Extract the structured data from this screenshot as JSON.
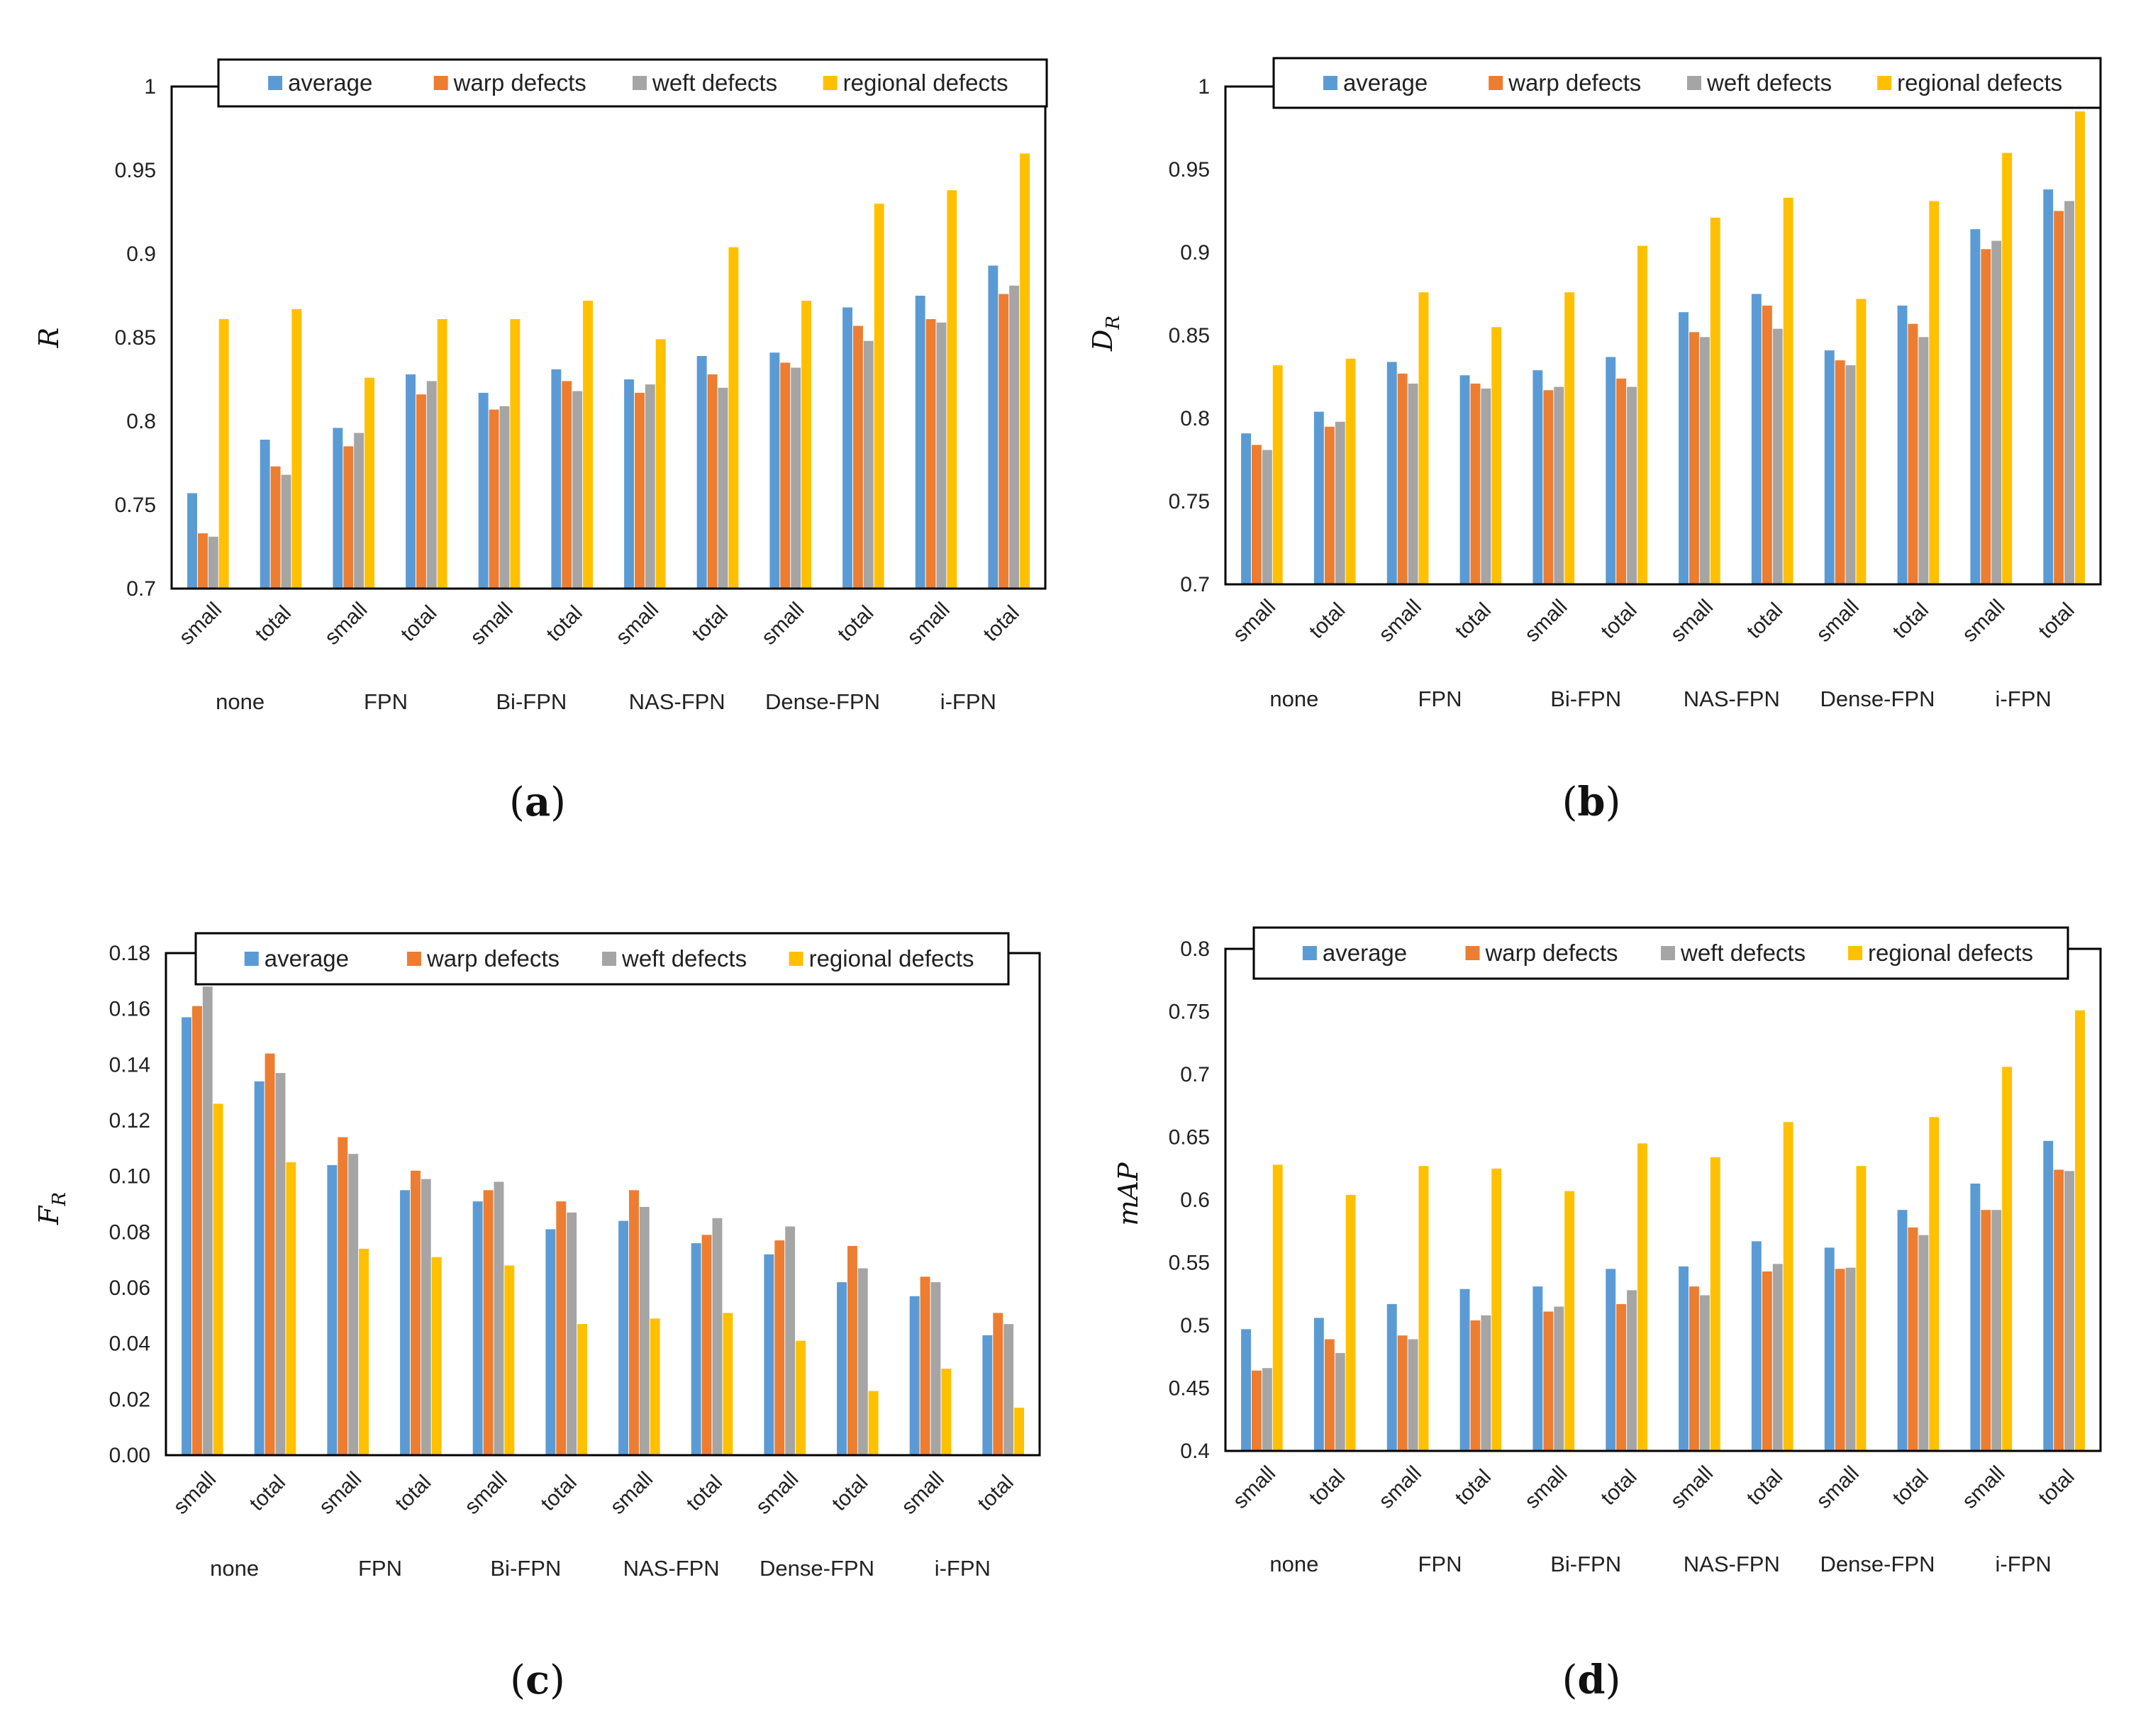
{
  "colors": {
    "average": "#5b9bd5",
    "warp defects": "#ed7d31",
    "weft defects": "#a5a5a5",
    "regional defects": "#ffc000"
  },
  "chart_data": [
    {
      "type": "bar",
      "panel": "a",
      "ylabel": "R",
      "ylim": [
        0.7,
        1
      ],
      "yticks": [
        "0.7",
        "0.75",
        "0.8",
        "0.85",
        "0.9",
        "0.95",
        "1"
      ],
      "categories": [
        "small",
        "total",
        "small",
        "total",
        "small",
        "total",
        "small",
        "total",
        "small",
        "total",
        "small",
        "total"
      ],
      "groups": [
        "none",
        "FPN",
        "Bi-FPN",
        "NAS-FPN",
        "Dense-FPN",
        "i-FPN"
      ],
      "series": [
        {
          "name": "average",
          "values": [
            0.757,
            0.789,
            0.796,
            0.828,
            0.817,
            0.831,
            0.825,
            0.839,
            0.841,
            0.868,
            0.875,
            0.893
          ]
        },
        {
          "name": "warp defects",
          "values": [
            0.733,
            0.773,
            0.785,
            0.816,
            0.807,
            0.824,
            0.817,
            0.828,
            0.835,
            0.857,
            0.861,
            0.876
          ]
        },
        {
          "name": "weft defects",
          "values": [
            0.731,
            0.768,
            0.793,
            0.824,
            0.809,
            0.818,
            0.822,
            0.82,
            0.832,
            0.848,
            0.859,
            0.881
          ]
        },
        {
          "name": "regional defects",
          "values": [
            0.861,
            0.867,
            0.826,
            0.861,
            0.861,
            0.872,
            0.849,
            0.904,
            0.872,
            0.93,
            0.938,
            0.96
          ]
        }
      ]
    },
    {
      "type": "bar",
      "panel": "b",
      "ylabel": "D_R",
      "ylim": [
        0.7,
        1
      ],
      "yticks": [
        "0.7",
        "0.75",
        "0.8",
        "0.85",
        "0.9",
        "0.95",
        "1"
      ],
      "categories": [
        "small",
        "total",
        "small",
        "total",
        "small",
        "total",
        "small",
        "total",
        "small",
        "total",
        "small",
        "total"
      ],
      "groups": [
        "none",
        "FPN",
        "Bi-FPN",
        "NAS-FPN",
        "Dense-FPN",
        "i-FPN"
      ],
      "series": [
        {
          "name": "average",
          "values": [
            0.791,
            0.804,
            0.834,
            0.826,
            0.829,
            0.837,
            0.864,
            0.875,
            0.841,
            0.868,
            0.914,
            0.938
          ]
        },
        {
          "name": "warp defects",
          "values": [
            0.784,
            0.795,
            0.827,
            0.821,
            0.817,
            0.824,
            0.852,
            0.868,
            0.835,
            0.857,
            0.902,
            0.925
          ]
        },
        {
          "name": "weft defects",
          "values": [
            0.781,
            0.798,
            0.821,
            0.818,
            0.819,
            0.819,
            0.849,
            0.854,
            0.832,
            0.849,
            0.907,
            0.931
          ]
        },
        {
          "name": "regional defects",
          "values": [
            0.832,
            0.836,
            0.876,
            0.855,
            0.876,
            0.904,
            0.921,
            0.933,
            0.872,
            0.931,
            0.96,
            0.985
          ]
        }
      ]
    },
    {
      "type": "bar",
      "panel": "c",
      "ylabel": "F_R",
      "ylim": [
        0,
        0.18
      ],
      "yticks": [
        "0.00",
        "0.02",
        "0.04",
        "0.06",
        "0.08",
        "0.10",
        "0.12",
        "0.14",
        "0.16",
        "0.18"
      ],
      "categories": [
        "small",
        "total",
        "small",
        "total",
        "small",
        "total",
        "small",
        "total",
        "small",
        "total",
        "small",
        "total"
      ],
      "groups": [
        "none",
        "FPN",
        "Bi-FPN",
        "NAS-FPN",
        "Dense-FPN",
        "i-FPN"
      ],
      "series": [
        {
          "name": "average",
          "values": [
            0.157,
            0.134,
            0.104,
            0.095,
            0.091,
            0.081,
            0.084,
            0.076,
            0.072,
            0.062,
            0.057,
            0.043
          ]
        },
        {
          "name": "warp defects",
          "values": [
            0.161,
            0.144,
            0.114,
            0.102,
            0.095,
            0.091,
            0.095,
            0.079,
            0.077,
            0.075,
            0.064,
            0.051
          ]
        },
        {
          "name": "weft defects",
          "values": [
            0.168,
            0.137,
            0.108,
            0.099,
            0.098,
            0.087,
            0.089,
            0.085,
            0.082,
            0.067,
            0.062,
            0.047
          ]
        },
        {
          "name": "regional defects",
          "values": [
            0.126,
            0.105,
            0.074,
            0.071,
            0.068,
            0.047,
            0.049,
            0.051,
            0.041,
            0.023,
            0.031,
            0.017
          ]
        }
      ]
    },
    {
      "type": "bar",
      "panel": "d",
      "ylabel": "mAP",
      "ylim": [
        0.4,
        0.8
      ],
      "yticks": [
        "0.4",
        "0.45",
        "0.5",
        "0.55",
        "0.6",
        "0.65",
        "0.7",
        "0.75",
        "0.8"
      ],
      "categories": [
        "small",
        "total",
        "small",
        "total",
        "small",
        "total",
        "small",
        "total",
        "small",
        "total",
        "small",
        "total"
      ],
      "groups": [
        "none",
        "FPN",
        "Bi-FPN",
        "NAS-FPN",
        "Dense-FPN",
        "i-FPN"
      ],
      "series": [
        {
          "name": "average",
          "values": [
            0.497,
            0.506,
            0.517,
            0.529,
            0.531,
            0.545,
            0.547,
            0.567,
            0.562,
            0.592,
            0.613,
            0.647
          ]
        },
        {
          "name": "warp defects",
          "values": [
            0.464,
            0.489,
            0.492,
            0.504,
            0.511,
            0.517,
            0.531,
            0.543,
            0.545,
            0.578,
            0.592,
            0.624
          ]
        },
        {
          "name": "weft defects",
          "values": [
            0.466,
            0.478,
            0.489,
            0.508,
            0.515,
            0.528,
            0.524,
            0.549,
            0.546,
            0.572,
            0.592,
            0.623
          ]
        },
        {
          "name": "regional defects",
          "values": [
            0.628,
            0.604,
            0.627,
            0.625,
            0.607,
            0.645,
            0.634,
            0.662,
            0.627,
            0.666,
            0.706,
            0.751
          ]
        }
      ]
    }
  ]
}
